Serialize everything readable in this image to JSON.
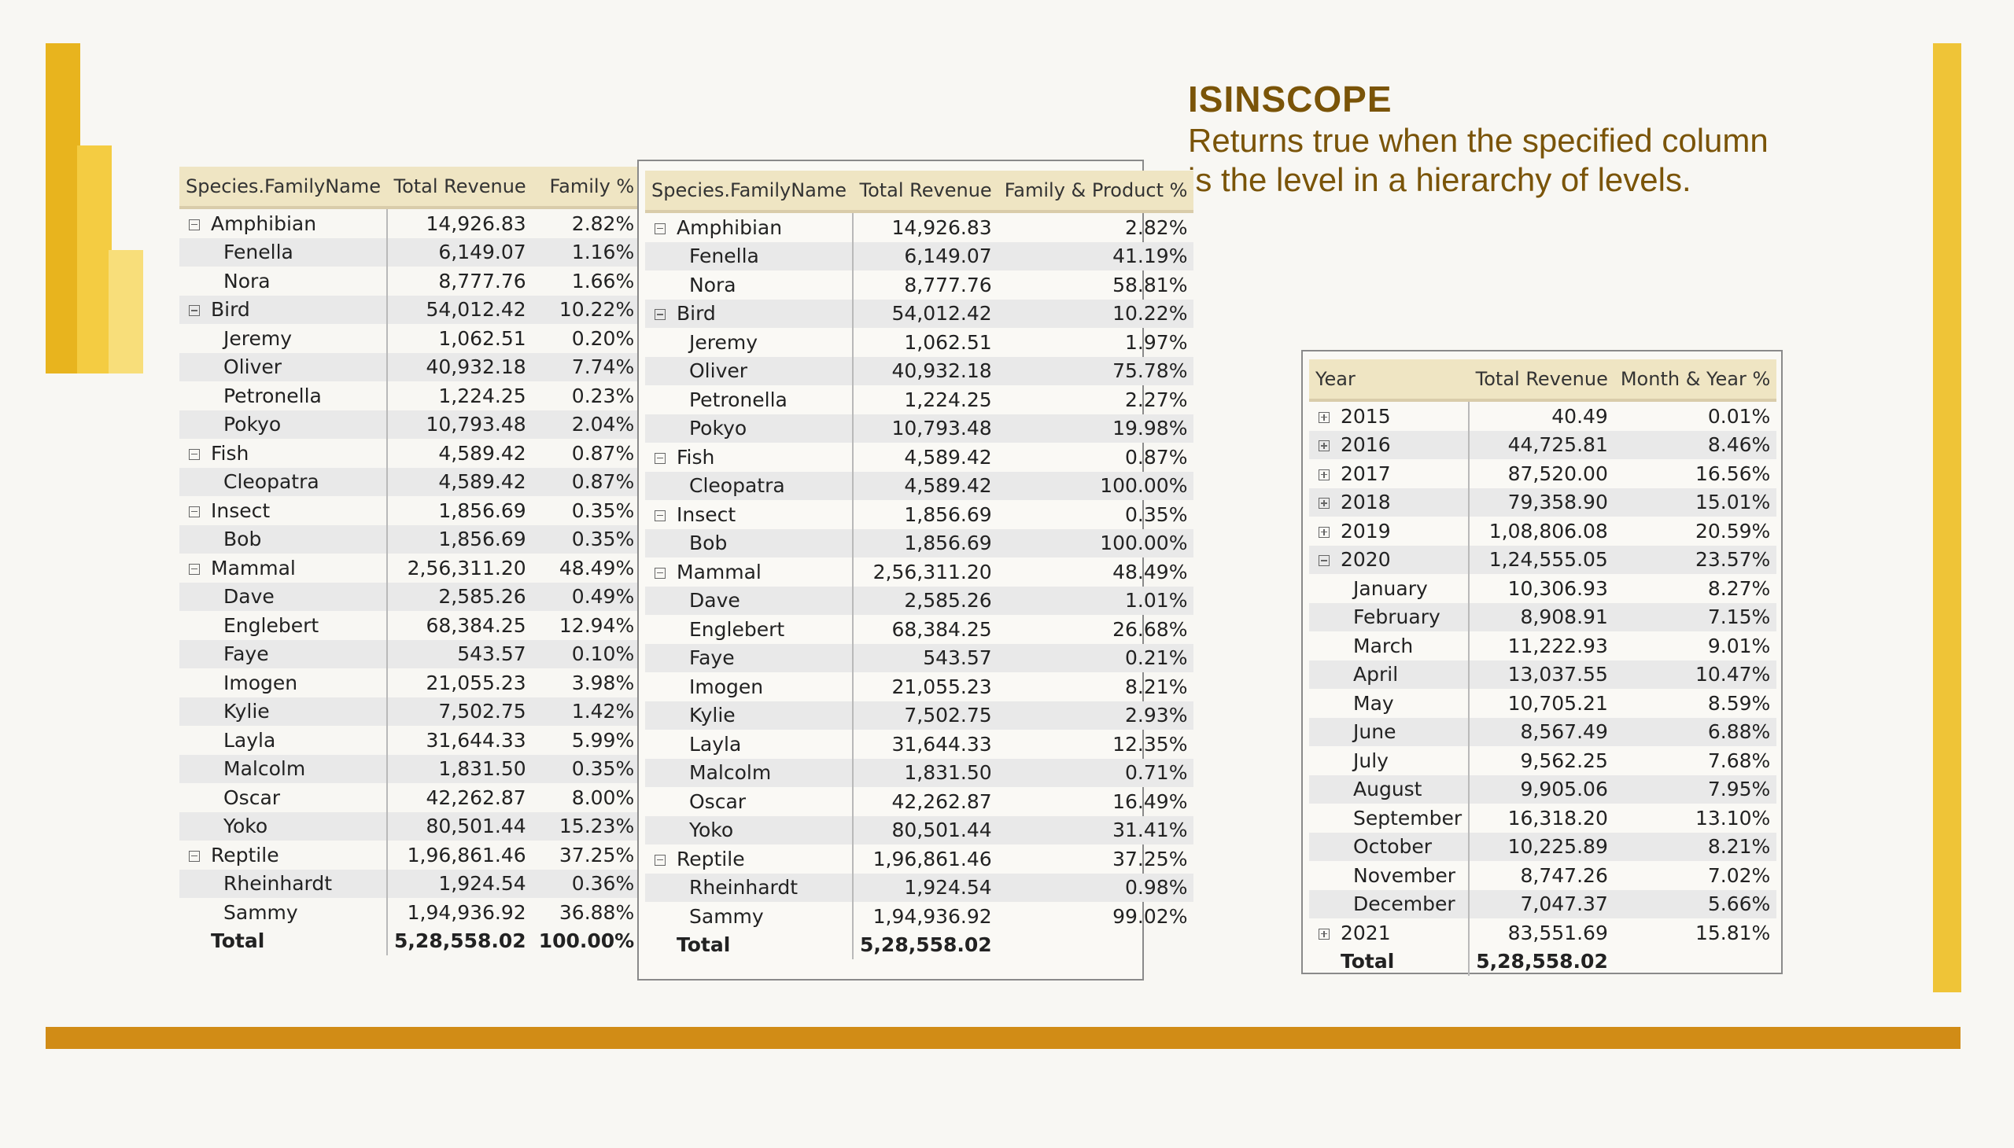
{
  "heading": {
    "title": "ISINSCOPE",
    "subtitle_line1": "Returns true when the specified column",
    "subtitle_line2": "is the level in a hierarchy of levels."
  },
  "colors": {
    "accent_dark": "#e8b41e",
    "accent_mid": "#f4cc42",
    "accent_light": "#f8de7a",
    "band": "#d18c16",
    "heading_text": "#7a5408",
    "table_header": "#efe5c3"
  },
  "tables": [
    {
      "id": "family",
      "headers": [
        "Species.FamilyName",
        "Total Revenue",
        "Family %"
      ],
      "rows": [
        {
          "type": "group",
          "icon": "collapse-icon",
          "cells": [
            "Amphibian",
            "14,926.83",
            "2.82%"
          ]
        },
        {
          "type": "child",
          "cells": [
            "Fenella",
            "6,149.07",
            "1.16%"
          ]
        },
        {
          "type": "child",
          "cells": [
            "Nora",
            "8,777.76",
            "1.66%"
          ]
        },
        {
          "type": "group",
          "icon": "collapse-icon",
          "cells": [
            "Bird",
            "54,012.42",
            "10.22%"
          ]
        },
        {
          "type": "child",
          "cells": [
            "Jeremy",
            "1,062.51",
            "0.20%"
          ]
        },
        {
          "type": "child",
          "cells": [
            "Oliver",
            "40,932.18",
            "7.74%"
          ]
        },
        {
          "type": "child",
          "cells": [
            "Petronella",
            "1,224.25",
            "0.23%"
          ]
        },
        {
          "type": "child",
          "cells": [
            "Pokyo",
            "10,793.48",
            "2.04%"
          ]
        },
        {
          "type": "group",
          "icon": "collapse-icon",
          "cells": [
            "Fish",
            "4,589.42",
            "0.87%"
          ]
        },
        {
          "type": "child",
          "cells": [
            "Cleopatra",
            "4,589.42",
            "0.87%"
          ]
        },
        {
          "type": "group",
          "icon": "collapse-icon",
          "cells": [
            "Insect",
            "1,856.69",
            "0.35%"
          ]
        },
        {
          "type": "child",
          "cells": [
            "Bob",
            "1,856.69",
            "0.35%"
          ]
        },
        {
          "type": "group",
          "icon": "collapse-icon",
          "cells": [
            "Mammal",
            "2,56,311.20",
            "48.49%"
          ]
        },
        {
          "type": "child",
          "cells": [
            "Dave",
            "2,585.26",
            "0.49%"
          ]
        },
        {
          "type": "child",
          "cells": [
            "Englebert",
            "68,384.25",
            "12.94%"
          ]
        },
        {
          "type": "child",
          "cells": [
            "Faye",
            "543.57",
            "0.10%"
          ]
        },
        {
          "type": "child",
          "cells": [
            "Imogen",
            "21,055.23",
            "3.98%"
          ]
        },
        {
          "type": "child",
          "cells": [
            "Kylie",
            "7,502.75",
            "1.42%"
          ]
        },
        {
          "type": "child",
          "cells": [
            "Layla",
            "31,644.33",
            "5.99%"
          ]
        },
        {
          "type": "child",
          "cells": [
            "Malcolm",
            "1,831.50",
            "0.35%"
          ]
        },
        {
          "type": "child",
          "cells": [
            "Oscar",
            "42,262.87",
            "8.00%"
          ]
        },
        {
          "type": "child",
          "cells": [
            "Yoko",
            "80,501.44",
            "15.23%"
          ]
        },
        {
          "type": "group",
          "icon": "collapse-icon",
          "cells": [
            "Reptile",
            "1,96,861.46",
            "37.25%"
          ]
        },
        {
          "type": "child",
          "cells": [
            "Rheinhardt",
            "1,924.54",
            "0.36%"
          ]
        },
        {
          "type": "child",
          "cells": [
            "Sammy",
            "1,94,936.92",
            "36.88%"
          ]
        },
        {
          "type": "total",
          "cells": [
            "Total",
            "5,28,558.02",
            "100.00%"
          ]
        }
      ]
    },
    {
      "id": "family-product",
      "headers": [
        "Species.FamilyName",
        "Total Revenue",
        "Family & Product %"
      ],
      "rows": [
        {
          "type": "group",
          "icon": "collapse-icon",
          "cells": [
            "Amphibian",
            "14,926.83",
            "2.82%"
          ]
        },
        {
          "type": "child",
          "cells": [
            "Fenella",
            "6,149.07",
            "41.19%"
          ]
        },
        {
          "type": "child",
          "cells": [
            "Nora",
            "8,777.76",
            "58.81%"
          ]
        },
        {
          "type": "group",
          "icon": "collapse-icon",
          "cells": [
            "Bird",
            "54,012.42",
            "10.22%"
          ]
        },
        {
          "type": "child",
          "cells": [
            "Jeremy",
            "1,062.51",
            "1.97%"
          ]
        },
        {
          "type": "child",
          "cells": [
            "Oliver",
            "40,932.18",
            "75.78%"
          ]
        },
        {
          "type": "child",
          "cells": [
            "Petronella",
            "1,224.25",
            "2.27%"
          ]
        },
        {
          "type": "child",
          "cells": [
            "Pokyo",
            "10,793.48",
            "19.98%"
          ]
        },
        {
          "type": "group",
          "icon": "collapse-icon",
          "cells": [
            "Fish",
            "4,589.42",
            "0.87%"
          ]
        },
        {
          "type": "child",
          "cells": [
            "Cleopatra",
            "4,589.42",
            "100.00%"
          ]
        },
        {
          "type": "group",
          "icon": "collapse-icon",
          "cells": [
            "Insect",
            "1,856.69",
            "0.35%"
          ]
        },
        {
          "type": "child",
          "cells": [
            "Bob",
            "1,856.69",
            "100.00%"
          ]
        },
        {
          "type": "group",
          "icon": "collapse-icon",
          "cells": [
            "Mammal",
            "2,56,311.20",
            "48.49%"
          ]
        },
        {
          "type": "child",
          "cells": [
            "Dave",
            "2,585.26",
            "1.01%"
          ]
        },
        {
          "type": "child",
          "cells": [
            "Englebert",
            "68,384.25",
            "26.68%"
          ]
        },
        {
          "type": "child",
          "cells": [
            "Faye",
            "543.57",
            "0.21%"
          ]
        },
        {
          "type": "child",
          "cells": [
            "Imogen",
            "21,055.23",
            "8.21%"
          ]
        },
        {
          "type": "child",
          "cells": [
            "Kylie",
            "7,502.75",
            "2.93%"
          ]
        },
        {
          "type": "child",
          "cells": [
            "Layla",
            "31,644.33",
            "12.35%"
          ]
        },
        {
          "type": "child",
          "cells": [
            "Malcolm",
            "1,831.50",
            "0.71%"
          ]
        },
        {
          "type": "child",
          "cells": [
            "Oscar",
            "42,262.87",
            "16.49%"
          ]
        },
        {
          "type": "child",
          "cells": [
            "Yoko",
            "80,501.44",
            "31.41%"
          ]
        },
        {
          "type": "group",
          "icon": "collapse-icon",
          "cells": [
            "Reptile",
            "1,96,861.46",
            "37.25%"
          ]
        },
        {
          "type": "child",
          "cells": [
            "Rheinhardt",
            "1,924.54",
            "0.98%"
          ]
        },
        {
          "type": "child",
          "cells": [
            "Sammy",
            "1,94,936.92",
            "99.02%"
          ]
        },
        {
          "type": "total",
          "cells": [
            "Total",
            "5,28,558.02",
            ""
          ]
        }
      ]
    },
    {
      "id": "year-month",
      "headers": [
        "Year",
        "Total Revenue",
        "Month & Year %"
      ],
      "rows": [
        {
          "type": "group",
          "icon": "expand-icon",
          "cells": [
            "2015",
            "40.49",
            "0.01%"
          ]
        },
        {
          "type": "group",
          "icon": "expand-icon",
          "cells": [
            "2016",
            "44,725.81",
            "8.46%"
          ]
        },
        {
          "type": "group",
          "icon": "expand-icon",
          "cells": [
            "2017",
            "87,520.00",
            "16.56%"
          ]
        },
        {
          "type": "group",
          "icon": "expand-icon",
          "cells": [
            "2018",
            "79,358.90",
            "15.01%"
          ]
        },
        {
          "type": "group",
          "icon": "expand-icon",
          "cells": [
            "2019",
            "1,08,806.08",
            "20.59%"
          ]
        },
        {
          "type": "group",
          "icon": "collapse-icon",
          "cells": [
            "2020",
            "1,24,555.05",
            "23.57%"
          ]
        },
        {
          "type": "child",
          "cells": [
            "January",
            "10,306.93",
            "8.27%"
          ]
        },
        {
          "type": "child",
          "cells": [
            "February",
            "8,908.91",
            "7.15%"
          ]
        },
        {
          "type": "child",
          "cells": [
            "March",
            "11,222.93",
            "9.01%"
          ]
        },
        {
          "type": "child",
          "cells": [
            "April",
            "13,037.55",
            "10.47%"
          ]
        },
        {
          "type": "child",
          "cells": [
            "May",
            "10,705.21",
            "8.59%"
          ]
        },
        {
          "type": "child",
          "cells": [
            "June",
            "8,567.49",
            "6.88%"
          ]
        },
        {
          "type": "child",
          "cells": [
            "July",
            "9,562.25",
            "7.68%"
          ]
        },
        {
          "type": "child",
          "cells": [
            "August",
            "9,905.06",
            "7.95%"
          ]
        },
        {
          "type": "child",
          "cells": [
            "September",
            "16,318.20",
            "13.10%"
          ]
        },
        {
          "type": "child",
          "cells": [
            "October",
            "10,225.89",
            "8.21%"
          ]
        },
        {
          "type": "child",
          "cells": [
            "November",
            "8,747.26",
            "7.02%"
          ]
        },
        {
          "type": "child",
          "cells": [
            "December",
            "7,047.37",
            "5.66%"
          ]
        },
        {
          "type": "group",
          "icon": "expand-icon",
          "cells": [
            "2021",
            "83,551.69",
            "15.81%"
          ]
        },
        {
          "type": "total",
          "cells": [
            "Total",
            "5,28,558.02",
            ""
          ]
        }
      ]
    }
  ]
}
